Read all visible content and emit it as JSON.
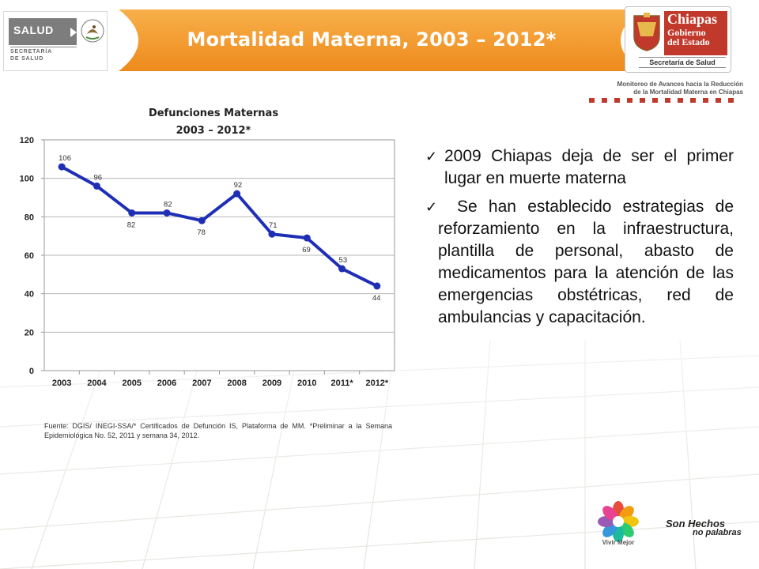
{
  "header": {
    "title": "Mortalidad Materna, 2003 – 2012*",
    "salud_logo": {
      "word": "SALUD",
      "subtitle_line1": "SECRETARÍA",
      "subtitle_line2": "DE SALUD"
    },
    "chiapas_logo": {
      "name": "Chiapas",
      "line2": "Gobierno",
      "line3": "del Estado",
      "secretaria": "Secretaría de Salud"
    },
    "monitor_line1": "Monitoreo de Avances hacia la Reducción",
    "monitor_line2": "de la Mortalidad Materna en Chiapas"
  },
  "colors": {
    "header_orange": "#f39a2e",
    "series_blue": "#1f2fb5",
    "accent_red": "#c0392b"
  },
  "chart_data": {
    "type": "line",
    "title_line1": "Defunciones Maternas",
    "title_line2": "2003 – 2012*",
    "categories": [
      "2003",
      "2004",
      "2005",
      "2006",
      "2007",
      "2008",
      "2009",
      "2010",
      "2011*",
      "2012*"
    ],
    "series": [
      {
        "values": [
          106,
          96,
          82,
          82,
          78,
          92,
          71,
          69,
          53,
          44
        ]
      }
    ],
    "data_labels": [
      "106",
      "96",
      "82",
      "82",
      "78",
      "92",
      "71",
      "69",
      "53",
      "44"
    ],
    "y_ticks": [
      "0",
      "20",
      "40",
      "60",
      "80",
      "100",
      "120"
    ],
    "ylim": [
      0,
      120
    ],
    "grid": true,
    "legend": "none"
  },
  "source_note": "Fuente: DGIS/ INEGI-SSA/* Certificados de Defunción IS, Plataforma de MM. *Preliminar a la Semana Epidemiológica No. 52, 2011 y semana 34, 2012.",
  "bullets": [
    {
      "icon": "check-icon",
      "text": "2009 Chiapas deja de ser el primer lugar en muerte materna"
    },
    {
      "icon": "check-icon",
      "text": "Se han establecido estrategias de reforzamiento en la infraestructura, plantilla de personal, abasto de medicamentos para la atención de las emergencias obstétricas, red de ambulancias y capacitación."
    }
  ],
  "footer": {
    "vivir_label": "Vivir Mejor",
    "son_hechos_line1": "Son Hechos",
    "son_hechos_line2": "no palabras"
  }
}
